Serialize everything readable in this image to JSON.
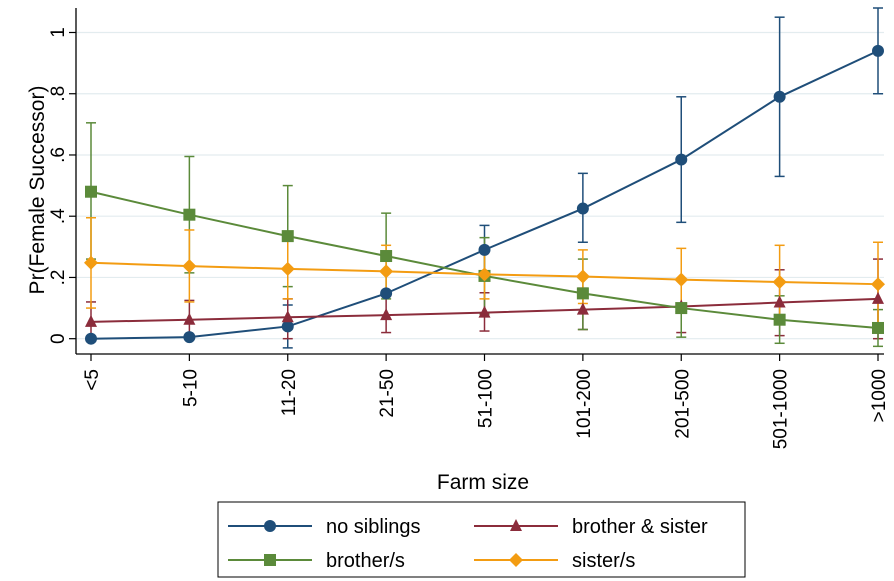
{
  "chart_data": {
    "type": "line",
    "xlabel": "Farm size",
    "ylabel": "Pr(Female Successor)",
    "categories": [
      "<5",
      "5-10",
      "11-20",
      "21-50",
      "51-100",
      "101-200",
      "201-500",
      "501-1000",
      ">1000"
    ],
    "ylim": [
      -0.05,
      1.08
    ],
    "yticks": [
      0,
      0.2,
      0.4,
      0.6,
      0.8,
      1
    ],
    "ytick_labels": [
      "0",
      ".2",
      ".4",
      ".6",
      ".8",
      "1"
    ],
    "grid": true,
    "legend_position": "bottom",
    "series": [
      {
        "name": "no siblings",
        "color": "#1f4e79",
        "marker": "circle",
        "values": [
          0.0,
          0.005,
          0.04,
          0.148,
          0.29,
          0.425,
          0.585,
          0.79,
          0.94
        ],
        "ci_low": [
          null,
          null,
          -0.03,
          null,
          0.21,
          0.315,
          0.38,
          0.53,
          0.8
        ],
        "ci_high": [
          null,
          null,
          0.11,
          null,
          0.37,
          0.54,
          0.79,
          1.05,
          1.08
        ]
      },
      {
        "name": "brother & sister",
        "color": "#8b2c3b",
        "marker": "triangle",
        "values": [
          0.055,
          0.062,
          0.07,
          0.077,
          0.085,
          0.095,
          0.105,
          0.118,
          0.13
        ],
        "ci_low": [
          0.0,
          0.0,
          0.0,
          0.02,
          0.025,
          0.03,
          0.02,
          0.01,
          0.0
        ],
        "ci_high": [
          0.12,
          0.125,
          0.13,
          0.14,
          0.15,
          0.165,
          0.19,
          0.225,
          0.26
        ]
      },
      {
        "name": "brother/s",
        "color": "#5b8a3a",
        "marker": "square",
        "values": [
          0.48,
          0.405,
          0.335,
          0.27,
          0.205,
          0.148,
          0.1,
          0.062,
          0.035
        ],
        "ci_low": [
          0.26,
          0.215,
          0.17,
          0.13,
          0.08,
          0.03,
          0.005,
          -0.015,
          -0.025
        ],
        "ci_high": [
          0.705,
          0.595,
          0.5,
          0.41,
          0.33,
          0.26,
          0.195,
          0.14,
          0.095
        ]
      },
      {
        "name": "sister/s",
        "color": "#f39c12",
        "marker": "diamond",
        "values": [
          0.248,
          0.237,
          0.228,
          0.22,
          0.21,
          0.203,
          0.193,
          0.185,
          0.178
        ],
        "ci_low": [
          0.1,
          0.12,
          0.13,
          0.14,
          0.13,
          0.115,
          0.095,
          0.07,
          0.045
        ],
        "ci_high": [
          0.395,
          0.355,
          0.33,
          0.305,
          0.295,
          0.29,
          0.295,
          0.305,
          0.315
        ]
      }
    ],
    "legend_order": [
      "no siblings",
      "brother & sister",
      "brother/s",
      "sister/s"
    ]
  }
}
